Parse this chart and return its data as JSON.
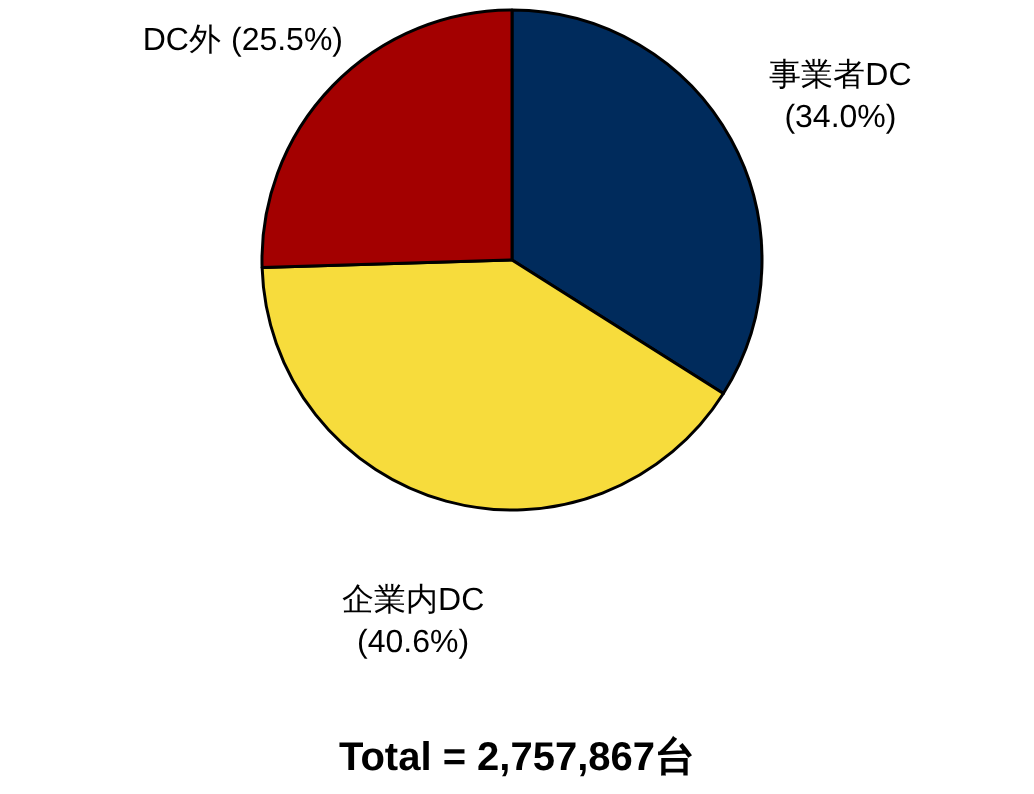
{
  "chart_data": {
    "type": "pie",
    "categories": [
      "事業者DC",
      "企業内DC",
      "DC外"
    ],
    "values": [
      34.0,
      40.6,
      25.5
    ],
    "colors": [
      "#002b5c",
      "#f7dc3c",
      "#a30000"
    ],
    "value_labels": [
      "(34.0%)",
      "(40.6%)",
      "(25.5%)"
    ],
    "annotations": [
      "**Total = 2,757,867台**"
    ]
  }
}
